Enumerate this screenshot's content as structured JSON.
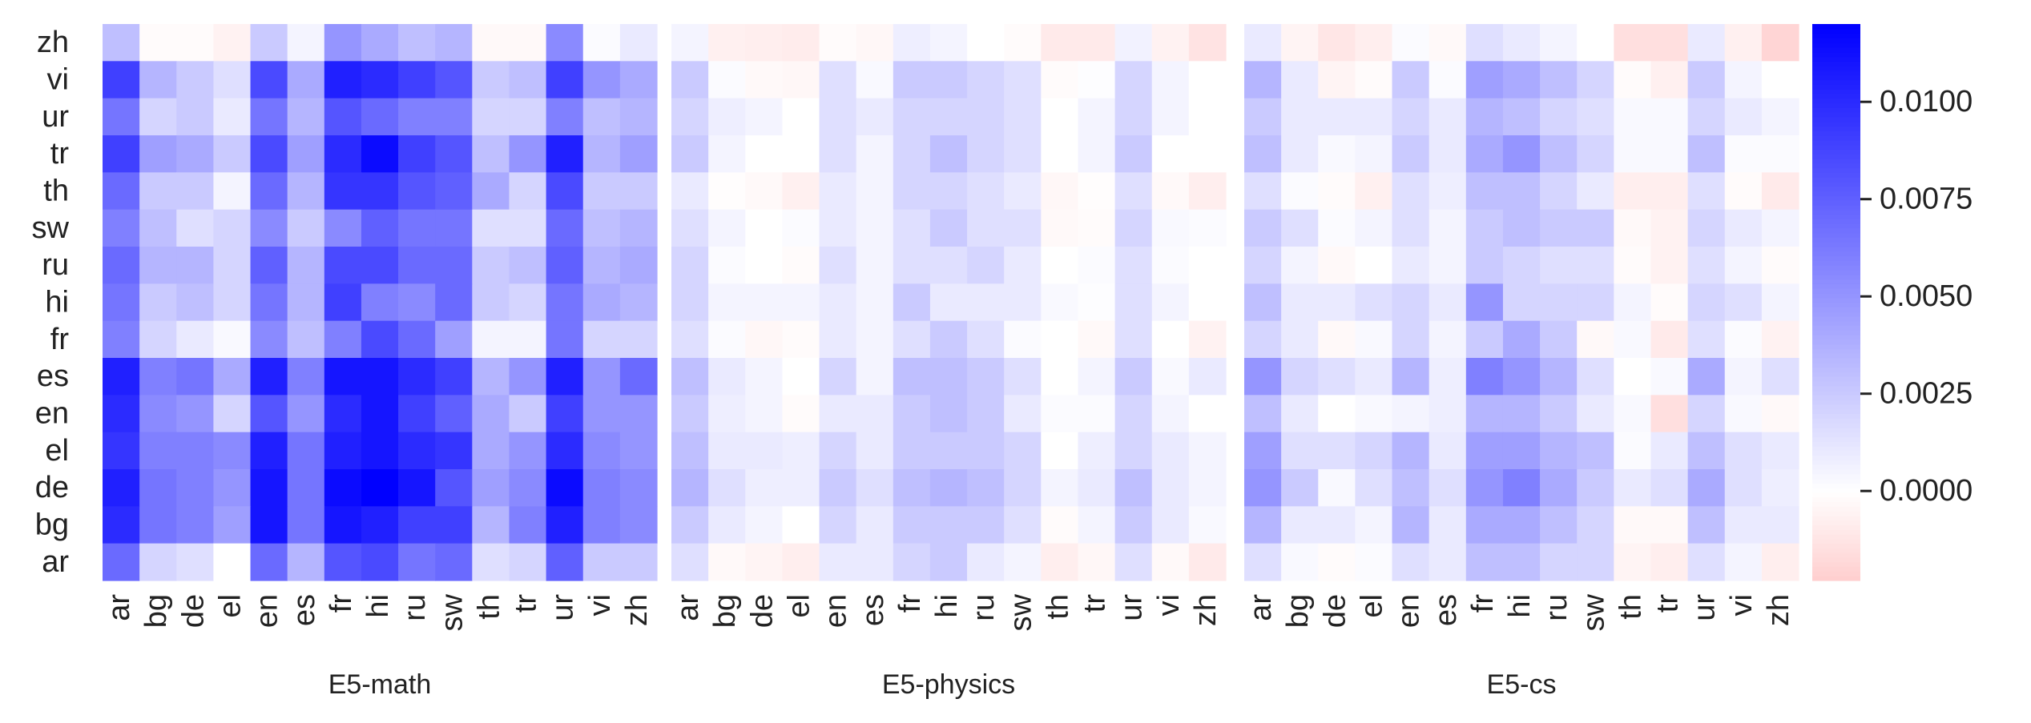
{
  "chart_data": {
    "type": "heatmap",
    "y_categories": [
      "zh",
      "vi",
      "ur",
      "tr",
      "th",
      "sw",
      "ru",
      "hi",
      "fr",
      "es",
      "en",
      "el",
      "de",
      "bg",
      "ar"
    ],
    "zlim": [
      -0.0023,
      0.012
    ],
    "zticks": [
      {
        "value": 0,
        "label": "0.0000"
      },
      {
        "value": 0.0025,
        "label": "0.0025"
      },
      {
        "value": 0.005,
        "label": "0.0050"
      },
      {
        "value": 0.0075,
        "label": "0.0075"
      },
      {
        "value": 0.01,
        "label": "0.0100"
      }
    ],
    "colors": {
      "negative": "#ff0000",
      "zero": "#ffffff",
      "positive": "#0000ff"
    },
    "panels": [
      {
        "xlabel": "E5-math",
        "x_categories": [
          "ar",
          "bg",
          "de",
          "el",
          "en",
          "es",
          "fr",
          "hi",
          "ru",
          "sw",
          "th",
          "tr",
          "ur",
          "vi",
          "zh"
        ],
        "values": [
          [
            0.003,
            -0.0002,
            -0.0002,
            -0.0006,
            0.0025,
            0.0005,
            0.005,
            0.004,
            0.003,
            0.0035,
            -0.0003,
            -0.0003,
            0.0055,
            0.0002,
            0.001
          ],
          [
            0.009,
            0.0035,
            0.0025,
            0.0015,
            0.0085,
            0.004,
            0.0105,
            0.01,
            0.009,
            0.008,
            0.0025,
            0.003,
            0.009,
            0.005,
            0.004
          ],
          [
            0.0065,
            0.002,
            0.0025,
            0.001,
            0.0065,
            0.0035,
            0.008,
            0.007,
            0.006,
            0.006,
            0.002,
            0.002,
            0.006,
            0.003,
            0.0035
          ],
          [
            0.009,
            0.0045,
            0.004,
            0.0025,
            0.0085,
            0.0045,
            0.01,
            0.0115,
            0.009,
            0.008,
            0.003,
            0.005,
            0.0105,
            0.0035,
            0.0045
          ],
          [
            0.007,
            0.0025,
            0.0025,
            0.0005,
            0.007,
            0.0035,
            0.0095,
            0.0095,
            0.008,
            0.0075,
            0.004,
            0.002,
            0.0085,
            0.0025,
            0.0025
          ],
          [
            0.006,
            0.003,
            0.0015,
            0.002,
            0.0055,
            0.0025,
            0.0055,
            0.0075,
            0.0065,
            0.0065,
            0.0015,
            0.0015,
            0.007,
            0.003,
            0.0035
          ],
          [
            0.007,
            0.0035,
            0.0035,
            0.002,
            0.0075,
            0.0035,
            0.0085,
            0.0085,
            0.007,
            0.007,
            0.0025,
            0.003,
            0.0075,
            0.0035,
            0.004
          ],
          [
            0.0065,
            0.0025,
            0.003,
            0.002,
            0.0065,
            0.0035,
            0.009,
            0.006,
            0.0055,
            0.007,
            0.0025,
            0.002,
            0.0065,
            0.004,
            0.0035
          ],
          [
            0.006,
            0.002,
            0.001,
            0.0003,
            0.0055,
            0.003,
            0.006,
            0.0085,
            0.007,
            0.0045,
            0.0005,
            0.0005,
            0.0065,
            0.002,
            0.002
          ],
          [
            0.0105,
            0.006,
            0.0065,
            0.004,
            0.0105,
            0.006,
            0.011,
            0.011,
            0.01,
            0.009,
            0.0035,
            0.005,
            0.0105,
            0.005,
            0.007
          ],
          [
            0.01,
            0.0055,
            0.005,
            0.002,
            0.008,
            0.005,
            0.01,
            0.011,
            0.009,
            0.0075,
            0.004,
            0.0025,
            0.009,
            0.005,
            0.005
          ],
          [
            0.0095,
            0.006,
            0.006,
            0.0055,
            0.0105,
            0.0065,
            0.0105,
            0.011,
            0.01,
            0.0095,
            0.004,
            0.005,
            0.01,
            0.0055,
            0.005
          ],
          [
            0.0105,
            0.0065,
            0.006,
            0.005,
            0.011,
            0.0065,
            0.0115,
            0.012,
            0.011,
            0.008,
            0.0045,
            0.0055,
            0.0115,
            0.006,
            0.0055
          ],
          [
            0.01,
            0.0065,
            0.006,
            0.0045,
            0.011,
            0.0065,
            0.011,
            0.0105,
            0.009,
            0.009,
            0.0035,
            0.006,
            0.0105,
            0.006,
            0.0055
          ],
          [
            0.007,
            0.002,
            0.0015,
            0,
            0.007,
            0.0035,
            0.008,
            0.0085,
            0.0065,
            0.007,
            0.0015,
            0.002,
            0.0075,
            0.0025,
            0.0025
          ]
        ]
      },
      {
        "xlabel": "E5-physics",
        "x_categories": [
          "ar",
          "bg",
          "de",
          "el",
          "en",
          "es",
          "fr",
          "hi",
          "ru",
          "sw",
          "th",
          "tr",
          "ur",
          "vi",
          "zh"
        ],
        "values": [
          [
            0.0005,
            -0.0007,
            -0.0008,
            -0.0009,
            -0.0002,
            -0.0004,
            0.0008,
            0.0005,
            0,
            -0.0002,
            -0.001,
            -0.001,
            0.0006,
            -0.0006,
            -0.0013
          ],
          [
            0.0025,
            0.0002,
            -0.0003,
            -0.0004,
            0.0015,
            0.0003,
            0.0025,
            0.0025,
            0.002,
            0.0015,
            -0.0002,
            0.0001,
            0.002,
            0.0005,
            0
          ],
          [
            0.002,
            0.0008,
            0.0005,
            0,
            0.0015,
            0.001,
            0.002,
            0.002,
            0.002,
            0.0015,
            0,
            0.0005,
            0.002,
            0.0005,
            0
          ],
          [
            0.0025,
            0.0005,
            0,
            0,
            0.0015,
            0.0005,
            0.002,
            0.003,
            0.002,
            0.0015,
            0,
            0.0005,
            0.0025,
            0,
            0
          ],
          [
            0.001,
            -0.0001,
            -0.0003,
            -0.0007,
            0.001,
            0.0005,
            0.002,
            0.002,
            0.0015,
            0.001,
            -0.0004,
            -0.0001,
            0.0015,
            -0.0003,
            -0.0008
          ],
          [
            0.0015,
            0.0005,
            0,
            0.0002,
            0.001,
            0.0005,
            0.0015,
            0.0025,
            0.0015,
            0.0015,
            -0.0003,
            -0.0002,
            0.002,
            0.0003,
            0.0002
          ],
          [
            0.002,
            0.0002,
            0,
            -0.0002,
            0.0015,
            0.0005,
            0.0015,
            0.0015,
            0.002,
            0.001,
            0,
            0.0002,
            0.0015,
            0.0002,
            0
          ],
          [
            0.002,
            0.0005,
            0.0005,
            0.0005,
            0.001,
            0.0005,
            0.0025,
            0.001,
            0.001,
            0.001,
            0.0003,
            0.0001,
            0.0015,
            0.0005,
            0
          ],
          [
            0.0015,
            0.0002,
            -0.0004,
            -0.0002,
            0.001,
            0.0005,
            0.0015,
            0.0025,
            0.0015,
            0.0002,
            0,
            -0.0003,
            0.0015,
            0,
            -0.0006
          ],
          [
            0.003,
            0.001,
            0.0005,
            0,
            0.002,
            0.0005,
            0.003,
            0.003,
            0.0025,
            0.0015,
            0,
            0.0005,
            0.0025,
            0.0003,
            0.001
          ],
          [
            0.0025,
            0.0008,
            0.0005,
            -0.0002,
            0.001,
            0.001,
            0.0025,
            0.003,
            0.0025,
            0.001,
            0.0002,
            0.0002,
            0.002,
            0.0005,
            0
          ],
          [
            0.003,
            0.001,
            0.001,
            0.0008,
            0.002,
            0.001,
            0.0025,
            0.0025,
            0.0025,
            0.002,
            0,
            0.0008,
            0.002,
            0.001,
            0.0005
          ],
          [
            0.0035,
            0.0015,
            0.0008,
            0.0008,
            0.0025,
            0.0015,
            0.003,
            0.0035,
            0.003,
            0.002,
            0.0005,
            0.001,
            0.003,
            0.001,
            0.0005
          ],
          [
            0.0025,
            0.001,
            0.0005,
            0,
            0.002,
            0.001,
            0.0025,
            0.0025,
            0.0025,
            0.0015,
            -0.0002,
            0.0005,
            0.0025,
            0.001,
            0.0003
          ],
          [
            0.0015,
            -0.0003,
            -0.0005,
            -0.0008,
            0.001,
            0.001,
            0.002,
            0.0025,
            0.001,
            0.0005,
            -0.0008,
            -0.0004,
            0.0015,
            -0.0003,
            -0.001
          ]
        ]
      },
      {
        "xlabel": "E5-cs",
        "x_categories": [
          "ar",
          "bg",
          "de",
          "el",
          "en",
          "es",
          "fr",
          "hi",
          "ru",
          "sw",
          "th",
          "tr",
          "ur",
          "vi",
          "zh"
        ],
        "values": [
          [
            0.001,
            -0.0005,
            -0.0012,
            -0.0008,
            0.0002,
            -0.0003,
            0.0015,
            0.001,
            0.0005,
            0,
            -0.0015,
            -0.0015,
            0.001,
            -0.0007,
            -0.002
          ],
          [
            0.0035,
            0.001,
            -0.0005,
            -0.0002,
            0.0025,
            0.0002,
            0.0045,
            0.004,
            0.003,
            0.002,
            -0.0002,
            -0.0007,
            0.0025,
            0.0005,
            0
          ],
          [
            0.0025,
            0.001,
            0.001,
            0.001,
            0.002,
            0.001,
            0.0035,
            0.003,
            0.002,
            0.0015,
            0.0003,
            0.0003,
            0.002,
            0.001,
            0.0005
          ],
          [
            0.003,
            0.001,
            0.0003,
            0.0005,
            0.0025,
            0.001,
            0.004,
            0.005,
            0.003,
            0.002,
            0.0003,
            0.0003,
            0.003,
            0.0002,
            0.0002
          ],
          [
            0.0015,
            0.0002,
            -0.0002,
            -0.0007,
            0.0015,
            0.0008,
            0.003,
            0.003,
            0.002,
            0.001,
            -0.0008,
            -0.0008,
            0.0015,
            -0.0002,
            -0.001
          ],
          [
            0.0025,
            0.0015,
            0.0002,
            0.0005,
            0.0015,
            0.0005,
            0.0025,
            0.003,
            0.0025,
            0.0025,
            -0.0003,
            -0.0006,
            0.002,
            0.001,
            0.0005
          ],
          [
            0.002,
            0.0005,
            -0.0003,
            0,
            0.001,
            0.0005,
            0.0025,
            0.002,
            0.0015,
            0.0015,
            -0.0002,
            -0.0006,
            0.0015,
            0.0005,
            -0.0002
          ],
          [
            0.003,
            0.001,
            0.001,
            0.0015,
            0.002,
            0.001,
            0.005,
            0.002,
            0.002,
            0.002,
            0.0005,
            -0.0002,
            0.002,
            0.0015,
            0.0005
          ],
          [
            0.002,
            0.001,
            -0.0003,
            0.0003,
            0.002,
            0.0005,
            0.0025,
            0.004,
            0.0025,
            -0.0003,
            0.0003,
            -0.001,
            0.0015,
            0.0002,
            -0.0006
          ],
          [
            0.005,
            0.002,
            0.0015,
            0.001,
            0.0035,
            0.0008,
            0.006,
            0.005,
            0.0035,
            0.0015,
            0,
            0.0003,
            0.004,
            0.0005,
            0.0015
          ],
          [
            0.003,
            0.001,
            0,
            0.0003,
            0.0005,
            0.0008,
            0.0035,
            0.0035,
            0.0025,
            0.001,
            0.0003,
            -0.0015,
            0.002,
            0.0003,
            -0.0003
          ],
          [
            0.0045,
            0.0015,
            0.0015,
            0.002,
            0.0035,
            0.001,
            0.0045,
            0.0045,
            0.0035,
            0.003,
            0.0002,
            0.001,
            0.003,
            0.0015,
            0.001
          ],
          [
            0.005,
            0.0025,
            0.0003,
            0.0015,
            0.003,
            0.0015,
            0.005,
            0.006,
            0.004,
            0.0025,
            0.001,
            0.0015,
            0.004,
            0.0015,
            0.0008
          ],
          [
            0.0035,
            0.001,
            0.001,
            0.0005,
            0.0035,
            0.001,
            0.004,
            0.004,
            0.003,
            0.002,
            -0.0003,
            -0.0003,
            0.003,
            0.001,
            0.001
          ],
          [
            0.0015,
            0.0003,
            -0.0002,
            0.0002,
            0.0015,
            0.001,
            0.003,
            0.003,
            0.002,
            0.002,
            -0.0005,
            -0.0008,
            0.0015,
            0.0005,
            -0.0008
          ]
        ]
      }
    ]
  }
}
